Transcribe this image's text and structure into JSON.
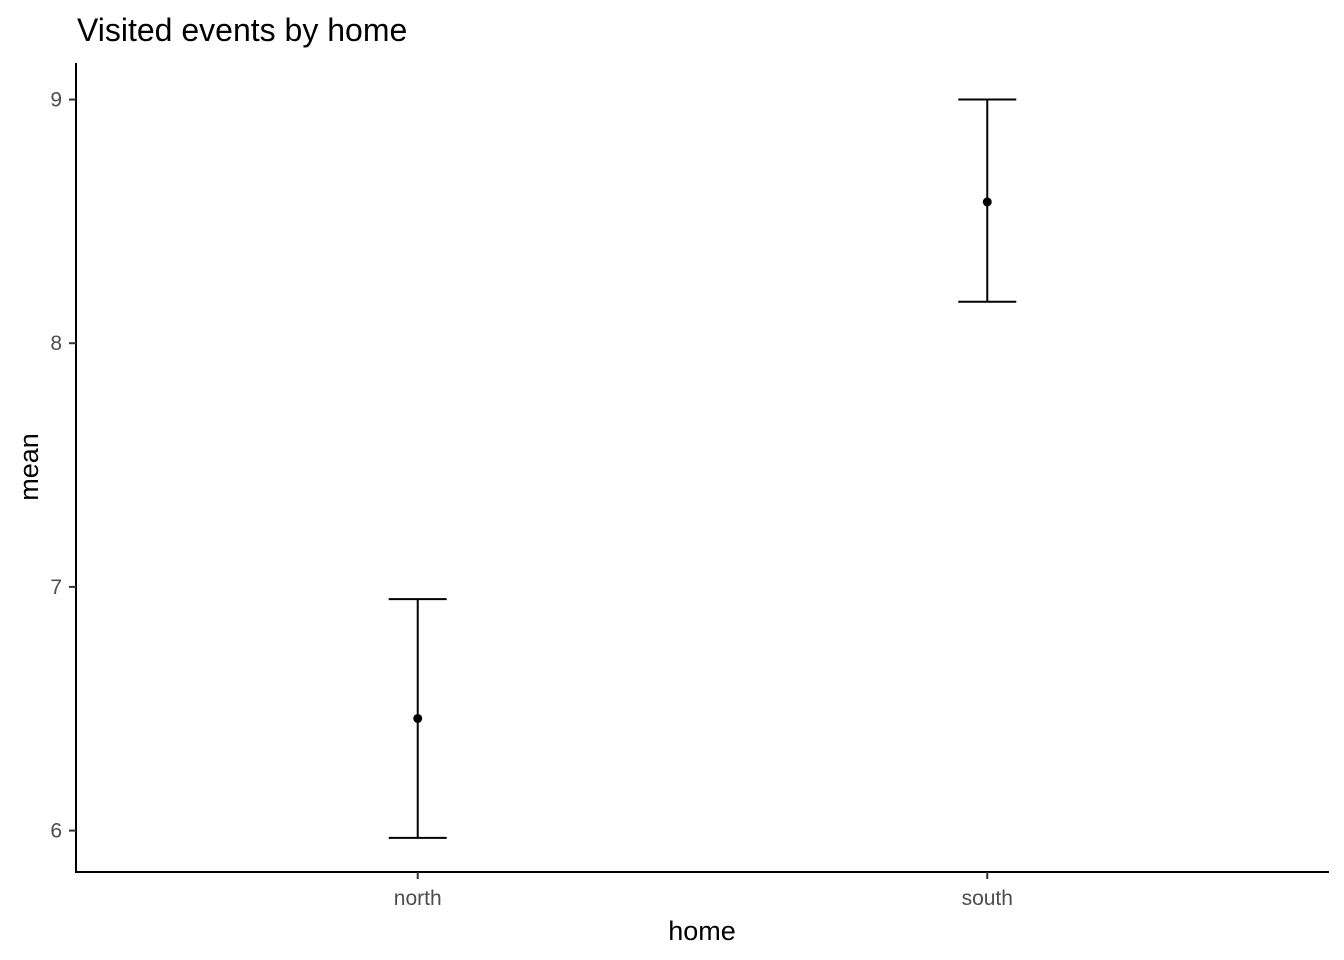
{
  "chart_data": {
    "type": "errorbar",
    "title": "Visited events by home",
    "xlabel": "home",
    "ylabel": "mean",
    "categories": [
      "north",
      "south"
    ],
    "series": [
      {
        "values": [
          6.46,
          8.58
        ],
        "lower": [
          5.97,
          8.17
        ],
        "upper": [
          6.95,
          9.0
        ]
      }
    ],
    "ylim": [
      5.83,
      9.15
    ],
    "yticks": [
      6,
      7,
      8,
      9
    ],
    "grid": false,
    "legend": "none"
  }
}
